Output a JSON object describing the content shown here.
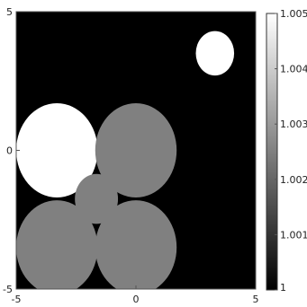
{
  "chart_data": {
    "type": "heatmap",
    "title": "",
    "xlabel": "",
    "ylabel": "",
    "xlim": [
      -5,
      5
    ],
    "ylim": [
      -5,
      5
    ],
    "grid": false,
    "background_value": 1.0,
    "colormap": "gray",
    "x_ticks": [
      -5,
      0,
      5
    ],
    "y_ticks": [
      5,
      0,
      -5
    ],
    "x_tick_labels": [
      "-5",
      "0",
      "5"
    ],
    "y_tick_labels": [
      "5",
      "0",
      "-5"
    ],
    "regions": [
      {
        "shape": "circle",
        "cx": -3.3,
        "cy": 0.0,
        "r": 1.7,
        "value": 1.005
      },
      {
        "shape": "circle",
        "cx": 0.0,
        "cy": 0.0,
        "r": 1.7,
        "value": 1.0025
      },
      {
        "shape": "circle",
        "cx": -3.3,
        "cy": -3.5,
        "r": 1.7,
        "value": 1.0025
      },
      {
        "shape": "circle",
        "cx": 0.0,
        "cy": -3.5,
        "r": 1.7,
        "value": 1.0025
      },
      {
        "shape": "circle",
        "cx": -1.65,
        "cy": -1.75,
        "r": 0.9,
        "value": 1.0025
      },
      {
        "shape": "circle",
        "cx": 3.3,
        "cy": 3.5,
        "r": 0.8,
        "value": 1.005
      }
    ],
    "colorbar": {
      "min": 1.0,
      "max": 1.005,
      "ticks": [
        1.005,
        1.004,
        1.003,
        1.002,
        1.001,
        1
      ],
      "tick_labels": [
        "1.005",
        "1.004",
        "1.003",
        "1.002",
        "1.001",
        "1"
      ]
    }
  }
}
